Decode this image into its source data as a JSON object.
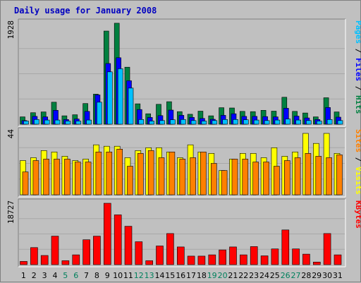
{
  "chart_data": {
    "type": "bar",
    "title": "Daily usage for January 2008",
    "x": [
      "1",
      "2",
      "3",
      "4",
      "5",
      "6",
      "7",
      "8",
      "9",
      "10",
      "11",
      "12",
      "13",
      "14",
      "15",
      "16",
      "17",
      "18",
      "19",
      "20",
      "21",
      "22",
      "23",
      "24",
      "25",
      "26",
      "27",
      "28",
      "29",
      "30",
      "31"
    ],
    "weekend_days": [
      "5",
      "6",
      "12",
      "13",
      "19",
      "20",
      "26",
      "27"
    ],
    "panels": [
      {
        "name": "hits-files-pages",
        "ymax_label": "1928",
        "ymax": 1928,
        "legend": [
          {
            "text": "Pages",
            "color": "#00c0ff"
          },
          {
            "text": " / ",
            "color": "#000000"
          },
          {
            "text": "Files",
            "color": "#0000ff"
          },
          {
            "text": " / ",
            "color": "#000000"
          },
          {
            "text": "Hits",
            "color": "#008040"
          }
        ],
        "series": [
          {
            "name": "Hits",
            "color": "#008040",
            "values": [
              140,
              220,
              235,
              420,
              160,
              180,
              395,
              575,
              1780,
              1930,
              1090,
              390,
              200,
              380,
              430,
              240,
              190,
              250,
              160,
              315,
              310,
              245,
              240,
              265,
              250,
              515,
              245,
              215,
              140,
              505,
              235
            ]
          },
          {
            "name": "Files",
            "color": "#0000ff",
            "values": [
              70,
              150,
              140,
              265,
              90,
              100,
              245,
              560,
              1160,
              1270,
              830,
              280,
              130,
              165,
              270,
              170,
              130,
              110,
              95,
              170,
              200,
              150,
              150,
              145,
              140,
              305,
              155,
              120,
              90,
              320,
              135
            ]
          },
          {
            "name": "Pages",
            "color": "#00c0ff",
            "values": [
              60,
              90,
              80,
              80,
              60,
              60,
              80,
              420,
              1000,
              1060,
              690,
              90,
              60,
              70,
              85,
              90,
              70,
              60,
              70,
              90,
              90,
              85,
              80,
              70,
              80,
              100,
              80,
              70,
              60,
              90,
              70
            ]
          }
        ]
      },
      {
        "name": "visits-sites",
        "ymax_label": "44",
        "ymax": 44,
        "legend": [
          {
            "text": "Sites",
            "color": "#ff8000"
          },
          {
            "text": " / ",
            "color": "#000000"
          },
          {
            "text": "Visits",
            "color": "#ffff00"
          }
        ],
        "series": [
          {
            "name": "Visits",
            "color": "#ffff00",
            "values": [
              24,
              26,
              31,
              30,
              27,
              24,
              25,
              35,
              34,
              34,
              26,
              31,
              33,
              33,
              30,
              26,
              35,
              30,
              29,
              17,
              25,
              29,
              29,
              26,
              33,
              27,
              30,
              43,
              36,
              43,
              29
            ]
          },
          {
            "name": "Sites",
            "color": "#ff8000",
            "values": [
              16,
              24,
              25,
              25,
              25,
              23,
              23,
              30,
              30,
              32,
              20,
              29,
              31,
              26,
              30,
              25,
              26,
              30,
              22,
              17,
              25,
              25,
              23,
              23,
              20,
              24,
              26,
              29,
              27,
              26,
              28
            ]
          }
        ]
      },
      {
        "name": "kbytes",
        "ymax_label": "18727",
        "ymax": 18727,
        "legend": [
          {
            "text": "KBytes",
            "color": "#ff0000"
          }
        ],
        "series": [
          {
            "name": "KBytes",
            "color": "#ff0000",
            "values": [
              1000,
              5200,
              2800,
              8700,
              1200,
              3000,
              7600,
              8700,
              18727,
              15200,
              11700,
              7000,
              1200,
              5700,
              9500,
              5400,
              2600,
              2600,
              3000,
              4500,
              5400,
              3000,
              5500,
              2700,
              4800,
              10600,
              4800,
              3200,
              800,
              9500,
              3000
            ]
          }
        ]
      }
    ]
  }
}
